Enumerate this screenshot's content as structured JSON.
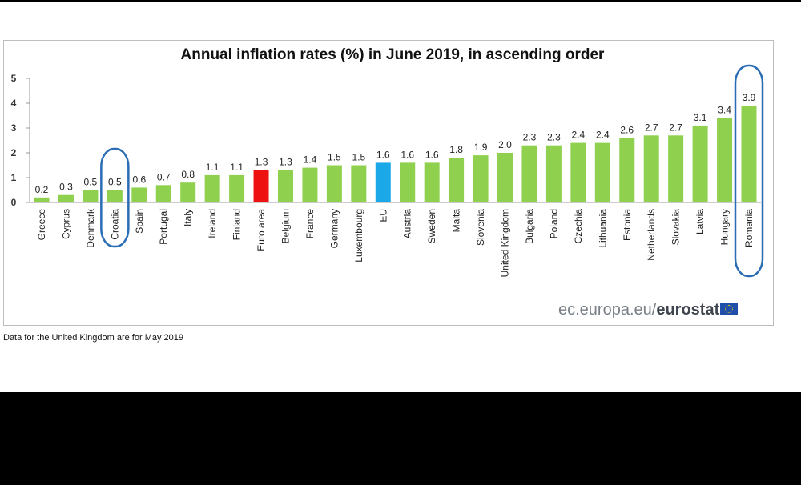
{
  "chart_data": {
    "type": "bar",
    "title": "Annual inflation rates (%) in June 2019, in ascending order",
    "xlabel": "",
    "ylabel": "",
    "ylim": [
      0,
      5
    ],
    "yticks": [
      0,
      1,
      2,
      3,
      4,
      5
    ],
    "grid": false,
    "categories": [
      "Greece",
      "Cyprus",
      "Denmark",
      "Croatia",
      "Spain",
      "Portugal",
      "Italy",
      "Ireland",
      "Finland",
      "Euro area",
      "Belgium",
      "France",
      "Germany",
      "Luxembourg",
      "EU",
      "Austria",
      "Sweden",
      "Malta",
      "Slovenia",
      "United Kingdom",
      "Bulgaria",
      "Poland",
      "Czechia",
      "Lithuania",
      "Estonia",
      "Netherlands",
      "Slovakia",
      "Latvia",
      "Hungary",
      "Romania"
    ],
    "values": [
      0.2,
      0.3,
      0.5,
      0.5,
      0.6,
      0.7,
      0.8,
      1.1,
      1.1,
      1.3,
      1.3,
      1.4,
      1.5,
      1.5,
      1.6,
      1.6,
      1.6,
      1.8,
      1.9,
      2.0,
      2.3,
      2.3,
      2.4,
      2.4,
      2.6,
      2.7,
      2.7,
      3.1,
      3.4,
      3.9
    ],
    "colors": {
      "default": "#8fd14f",
      "Euro area": "#ee1111",
      "EU": "#1aa8e8"
    },
    "annotations": {
      "circled_categories": [
        "Croatia",
        "Romania"
      ],
      "circle_color": "#2a6db5"
    }
  },
  "note": "Data for the United Kingdom are for May 2019",
  "source": {
    "domain": "ec.europa.eu/",
    "brand": "eurostat"
  }
}
